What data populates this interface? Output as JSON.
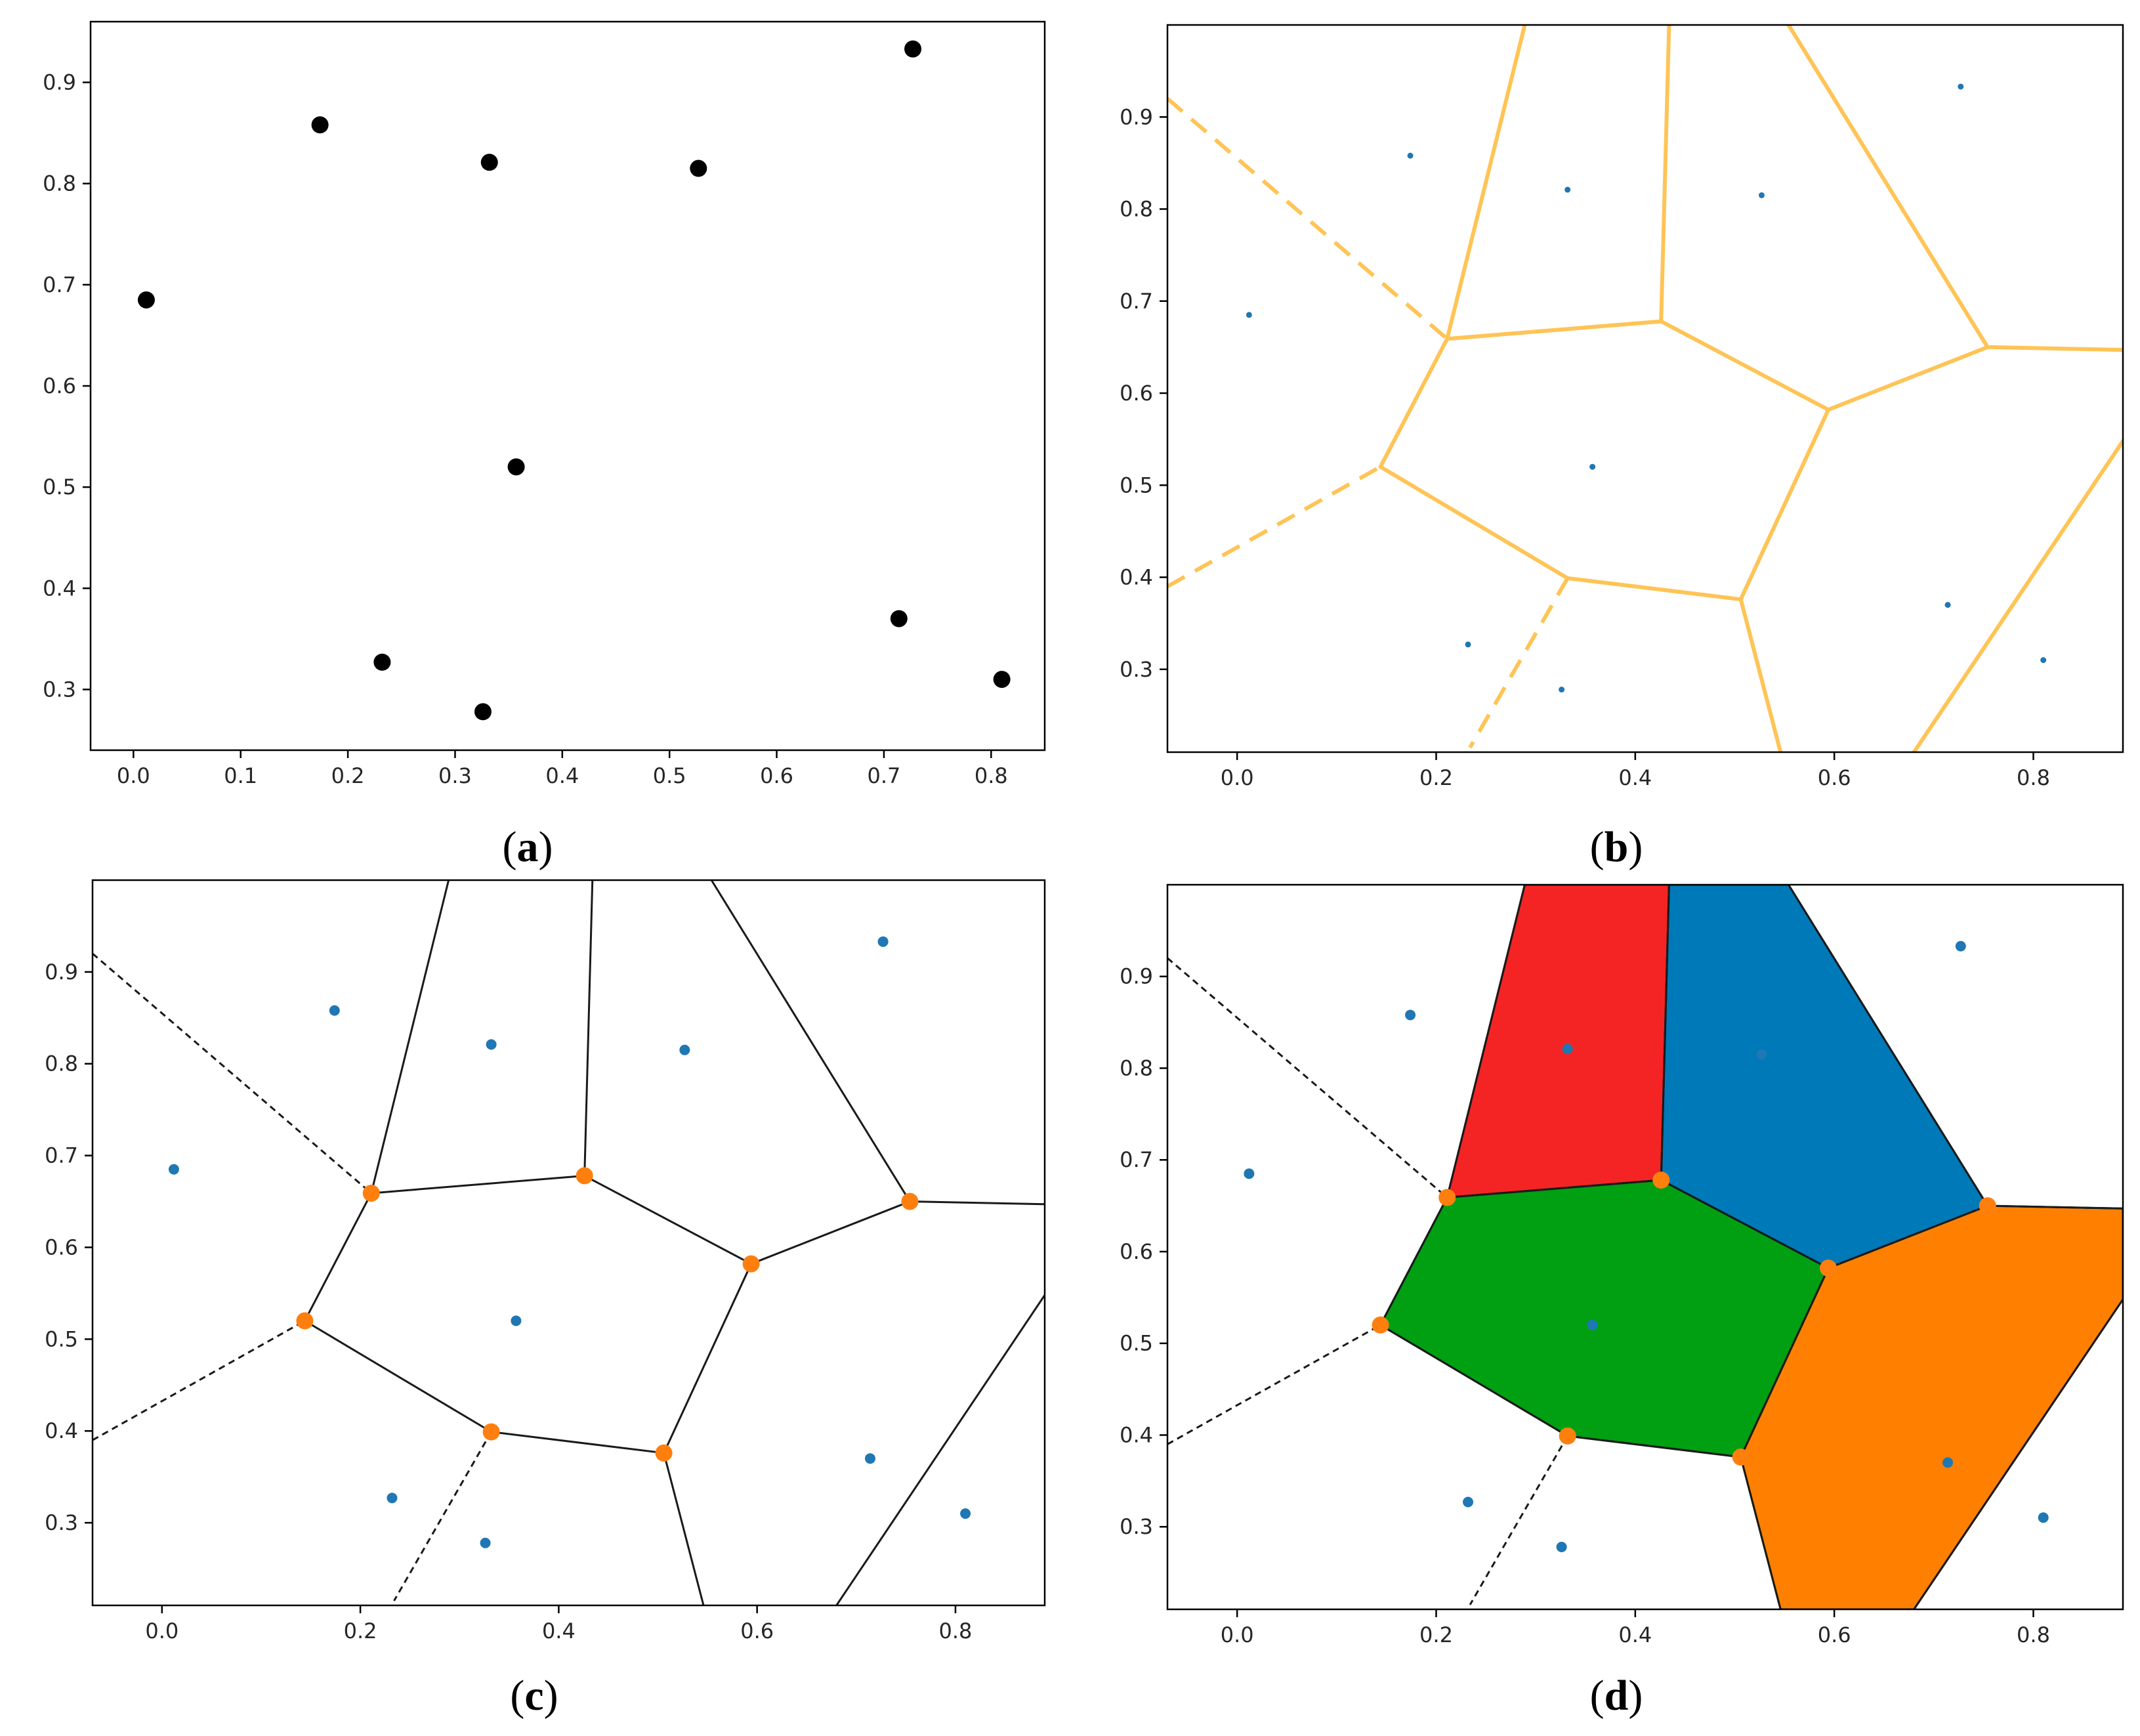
{
  "colors": {
    "points_black": "#000000",
    "seed_blue": "#1f77b4",
    "vertex_orange": "#ff7f0e",
    "voronoi_light": "#ffc456",
    "edge_black": "#1a1a1a",
    "fill_red": "#f52424",
    "fill_blue": "#0079b8",
    "fill_green": "#00a012",
    "fill_orange": "#ff8000"
  },
  "chart_data": [
    {
      "id": "a",
      "type": "scatter",
      "caption": "(a)",
      "caption_letter": "a",
      "xlim": [
        -0.04,
        0.85
      ],
      "ylim": [
        0.24,
        0.96
      ],
      "xticks": [
        "0.0",
        "0.1",
        "0.2",
        "0.3",
        "0.4",
        "0.5",
        "0.6",
        "0.7",
        "0.8"
      ],
      "yticks": [
        "0.3",
        "0.4",
        "0.5",
        "0.6",
        "0.7",
        "0.8",
        "0.9"
      ],
      "points": [
        [
          0.012,
          0.685
        ],
        [
          0.174,
          0.858
        ],
        [
          0.332,
          0.821
        ],
        [
          0.527,
          0.815
        ],
        [
          0.727,
          0.933
        ],
        [
          0.357,
          0.52
        ],
        [
          0.232,
          0.327
        ],
        [
          0.326,
          0.278
        ],
        [
          0.714,
          0.37
        ],
        [
          0.81,
          0.31
        ]
      ],
      "point_color": "black",
      "edges": [],
      "dashed_edges": [],
      "vertices": [],
      "regions": []
    },
    {
      "id": "b",
      "type": "voronoi",
      "caption": "(b)",
      "caption_letter": "b",
      "xlim": [
        -0.07,
        0.89
      ],
      "ylim": [
        0.21,
        1.0
      ],
      "xticks": [
        "0.0",
        "0.2",
        "0.4",
        "0.6",
        "0.8"
      ],
      "yticks": [
        "0.3",
        "0.4",
        "0.5",
        "0.6",
        "0.7",
        "0.8",
        "0.9"
      ],
      "points": [
        [
          0.012,
          0.685
        ],
        [
          0.174,
          0.858
        ],
        [
          0.332,
          0.821
        ],
        [
          0.527,
          0.815
        ],
        [
          0.727,
          0.933
        ],
        [
          0.357,
          0.52
        ],
        [
          0.232,
          0.327
        ],
        [
          0.326,
          0.278
        ],
        [
          0.714,
          0.37
        ],
        [
          0.81,
          0.31
        ]
      ],
      "point_color": "blue",
      "edge_color": "light",
      "edges": [
        [
          [
            0.211,
            0.659
          ],
          [
            0.426,
            0.678
          ]
        ],
        [
          [
            0.426,
            0.678
          ],
          [
            0.594,
            0.582
          ]
        ],
        [
          [
            0.594,
            0.582
          ],
          [
            0.754,
            0.65
          ]
        ],
        [
          [
            0.754,
            0.65
          ],
          [
            0.89,
            0.647
          ]
        ],
        [
          [
            0.211,
            0.659
          ],
          [
            0.144,
            0.52
          ]
        ],
        [
          [
            0.144,
            0.52
          ],
          [
            0.332,
            0.399
          ]
        ],
        [
          [
            0.332,
            0.399
          ],
          [
            0.506,
            0.376
          ]
        ],
        [
          [
            0.506,
            0.376
          ],
          [
            0.594,
            0.582
          ]
        ],
        [
          [
            0.211,
            0.659
          ],
          [
            0.289,
            1.0
          ]
        ],
        [
          [
            0.426,
            0.678
          ],
          [
            0.434,
            1.0
          ]
        ],
        [
          [
            0.754,
            0.65
          ],
          [
            0.554,
            1.0
          ]
        ],
        [
          [
            0.506,
            0.376
          ],
          [
            0.546,
            0.21
          ]
        ],
        [
          [
            0.68,
            0.21
          ],
          [
            0.89,
            0.548
          ]
        ]
      ],
      "dashed_edges": [
        [
          [
            -0.07,
            0.92
          ],
          [
            0.211,
            0.659
          ]
        ],
        [
          [
            -0.07,
            0.39
          ],
          [
            0.144,
            0.52
          ]
        ],
        [
          [
            0.332,
            0.399
          ],
          [
            0.234,
            0.215
          ]
        ]
      ],
      "vertices": [],
      "regions": []
    },
    {
      "id": "c",
      "type": "voronoi",
      "caption": "(c)",
      "caption_letter": "c",
      "xlim": [
        -0.07,
        0.89
      ],
      "ylim": [
        0.21,
        1.0
      ],
      "xticks": [
        "0.0",
        "0.2",
        "0.4",
        "0.6",
        "0.8"
      ],
      "yticks": [
        "0.3",
        "0.4",
        "0.5",
        "0.6",
        "0.7",
        "0.8",
        "0.9"
      ],
      "points": [
        [
          0.012,
          0.685
        ],
        [
          0.174,
          0.858
        ],
        [
          0.332,
          0.821
        ],
        [
          0.527,
          0.815
        ],
        [
          0.727,
          0.933
        ],
        [
          0.357,
          0.52
        ],
        [
          0.232,
          0.327
        ],
        [
          0.326,
          0.278
        ],
        [
          0.714,
          0.37
        ],
        [
          0.81,
          0.31
        ]
      ],
      "point_color": "blue",
      "edge_color": "black",
      "edges": [
        [
          [
            0.211,
            0.659
          ],
          [
            0.426,
            0.678
          ]
        ],
        [
          [
            0.426,
            0.678
          ],
          [
            0.594,
            0.582
          ]
        ],
        [
          [
            0.594,
            0.582
          ],
          [
            0.754,
            0.65
          ]
        ],
        [
          [
            0.754,
            0.65
          ],
          [
            0.89,
            0.647
          ]
        ],
        [
          [
            0.211,
            0.659
          ],
          [
            0.144,
            0.52
          ]
        ],
        [
          [
            0.144,
            0.52
          ],
          [
            0.332,
            0.399
          ]
        ],
        [
          [
            0.332,
            0.399
          ],
          [
            0.506,
            0.376
          ]
        ],
        [
          [
            0.506,
            0.376
          ],
          [
            0.594,
            0.582
          ]
        ],
        [
          [
            0.211,
            0.659
          ],
          [
            0.289,
            1.0
          ]
        ],
        [
          [
            0.426,
            0.678
          ],
          [
            0.434,
            1.0
          ]
        ],
        [
          [
            0.754,
            0.65
          ],
          [
            0.554,
            1.0
          ]
        ],
        [
          [
            0.506,
            0.376
          ],
          [
            0.546,
            0.21
          ]
        ],
        [
          [
            0.68,
            0.21
          ],
          [
            0.89,
            0.548
          ]
        ]
      ],
      "dashed_edges": [
        [
          [
            -0.07,
            0.92
          ],
          [
            0.211,
            0.659
          ]
        ],
        [
          [
            -0.07,
            0.39
          ],
          [
            0.144,
            0.52
          ]
        ],
        [
          [
            0.332,
            0.399
          ],
          [
            0.234,
            0.215
          ]
        ]
      ],
      "vertices": [
        [
          0.211,
          0.659
        ],
        [
          0.426,
          0.678
        ],
        [
          0.594,
          0.582
        ],
        [
          0.754,
          0.65
        ],
        [
          0.144,
          0.52
        ],
        [
          0.332,
          0.399
        ],
        [
          0.506,
          0.376
        ]
      ],
      "regions": []
    },
    {
      "id": "d",
      "type": "voronoi",
      "caption": "(d)",
      "caption_letter": "d",
      "xlim": [
        -0.07,
        0.89
      ],
      "ylim": [
        0.21,
        1.0
      ],
      "xticks": [
        "0.0",
        "0.2",
        "0.4",
        "0.6",
        "0.8"
      ],
      "yticks": [
        "0.3",
        "0.4",
        "0.5",
        "0.6",
        "0.7",
        "0.8",
        "0.9"
      ],
      "points": [
        [
          0.012,
          0.685
        ],
        [
          0.174,
          0.858
        ],
        [
          0.332,
          0.821
        ],
        [
          0.527,
          0.815
        ],
        [
          0.727,
          0.933
        ],
        [
          0.357,
          0.52
        ],
        [
          0.232,
          0.327
        ],
        [
          0.326,
          0.278
        ],
        [
          0.714,
          0.37
        ],
        [
          0.81,
          0.31
        ]
      ],
      "point_color": "blue",
      "edge_color": "black",
      "edges": [
        [
          [
            0.211,
            0.659
          ],
          [
            0.426,
            0.678
          ]
        ],
        [
          [
            0.426,
            0.678
          ],
          [
            0.594,
            0.582
          ]
        ],
        [
          [
            0.594,
            0.582
          ],
          [
            0.754,
            0.65
          ]
        ],
        [
          [
            0.754,
            0.65
          ],
          [
            0.89,
            0.647
          ]
        ],
        [
          [
            0.211,
            0.659
          ],
          [
            0.144,
            0.52
          ]
        ],
        [
          [
            0.144,
            0.52
          ],
          [
            0.332,
            0.399
          ]
        ],
        [
          [
            0.332,
            0.399
          ],
          [
            0.506,
            0.376
          ]
        ],
        [
          [
            0.506,
            0.376
          ],
          [
            0.594,
            0.582
          ]
        ],
        [
          [
            0.211,
            0.659
          ],
          [
            0.289,
            1.0
          ]
        ],
        [
          [
            0.426,
            0.678
          ],
          [
            0.434,
            1.0
          ]
        ],
        [
          [
            0.754,
            0.65
          ],
          [
            0.554,
            1.0
          ]
        ],
        [
          [
            0.506,
            0.376
          ],
          [
            0.546,
            0.21
          ]
        ],
        [
          [
            0.68,
            0.21
          ],
          [
            0.89,
            0.548
          ]
        ]
      ],
      "dashed_edges": [
        [
          [
            -0.07,
            0.92
          ],
          [
            0.211,
            0.659
          ]
        ],
        [
          [
            -0.07,
            0.39
          ],
          [
            0.144,
            0.52
          ]
        ],
        [
          [
            0.332,
            0.399
          ],
          [
            0.234,
            0.215
          ]
        ]
      ],
      "vertices": [
        [
          0.211,
          0.659
        ],
        [
          0.426,
          0.678
        ],
        [
          0.594,
          0.582
        ],
        [
          0.754,
          0.65
        ],
        [
          0.144,
          0.52
        ],
        [
          0.332,
          0.399
        ],
        [
          0.506,
          0.376
        ]
      ],
      "regions": [
        {
          "color": "red",
          "polygon": [
            [
              0.211,
              0.659
            ],
            [
              0.289,
              1.0
            ],
            [
              0.434,
              1.0
            ],
            [
              0.426,
              0.678
            ]
          ]
        },
        {
          "color": "blue",
          "polygon": [
            [
              0.426,
              0.678
            ],
            [
              0.434,
              1.0
            ],
            [
              0.554,
              1.0
            ],
            [
              0.754,
              0.65
            ],
            [
              0.594,
              0.582
            ]
          ]
        },
        {
          "color": "green",
          "polygon": [
            [
              0.211,
              0.659
            ],
            [
              0.426,
              0.678
            ],
            [
              0.594,
              0.582
            ],
            [
              0.506,
              0.376
            ],
            [
              0.332,
              0.399
            ],
            [
              0.144,
              0.52
            ]
          ]
        },
        {
          "color": "orange",
          "polygon": [
            [
              0.594,
              0.582
            ],
            [
              0.754,
              0.65
            ],
            [
              0.89,
              0.647
            ],
            [
              0.89,
              0.548
            ],
            [
              0.68,
              0.21
            ],
            [
              0.546,
              0.21
            ],
            [
              0.506,
              0.376
            ]
          ]
        }
      ]
    }
  ]
}
